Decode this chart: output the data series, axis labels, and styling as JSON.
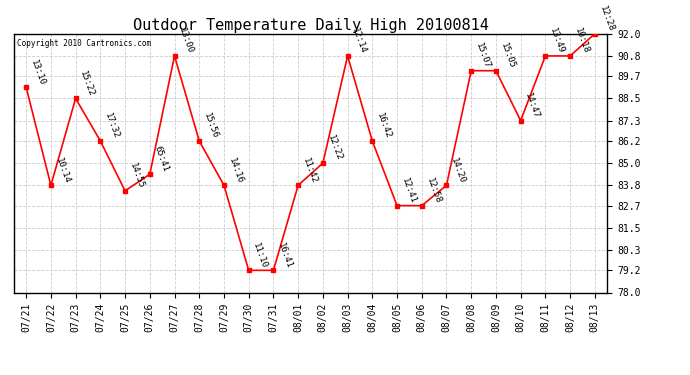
{
  "title": "Outdoor Temperature Daily High 20100814",
  "copyright": "Copyright 2010 Cartronics.com",
  "x_labels": [
    "07/21",
    "07/22",
    "07/23",
    "07/24",
    "07/25",
    "07/26",
    "07/27",
    "07/28",
    "07/29",
    "07/30",
    "07/31",
    "08/01",
    "08/02",
    "08/03",
    "08/04",
    "08/05",
    "08/06",
    "08/07",
    "08/08",
    "08/09",
    "08/10",
    "08/11",
    "08/12",
    "08/13"
  ],
  "y_values": [
    89.1,
    83.8,
    88.5,
    86.2,
    83.5,
    84.4,
    90.8,
    86.2,
    83.8,
    79.2,
    79.2,
    83.8,
    85.0,
    90.8,
    86.2,
    82.7,
    82.7,
    83.8,
    90.0,
    90.0,
    87.3,
    90.8,
    90.8,
    92.0
  ],
  "point_labels": [
    "13:10",
    "10:14",
    "15:22",
    "17:32",
    "14:55",
    "65:41",
    "13:00",
    "15:56",
    "14:16",
    "11:10",
    "16:41",
    "11:42",
    "12:22",
    "12:14",
    "16:42",
    "12:41",
    "12:58",
    "14:20",
    "15:07",
    "15:05",
    "14:47",
    "13:49",
    "10:18",
    "12:28"
  ],
  "ylim_min": 78.0,
  "ylim_max": 92.0,
  "yticks": [
    78.0,
    79.2,
    80.3,
    81.5,
    82.7,
    83.8,
    85.0,
    86.2,
    87.3,
    88.5,
    89.7,
    90.8,
    92.0
  ],
  "line_color": "red",
  "marker_color": "red",
  "bg_color": "white",
  "grid_color": "#cccccc",
  "title_fontsize": 11,
  "label_fontsize": 7,
  "annotation_fontsize": 6.5
}
